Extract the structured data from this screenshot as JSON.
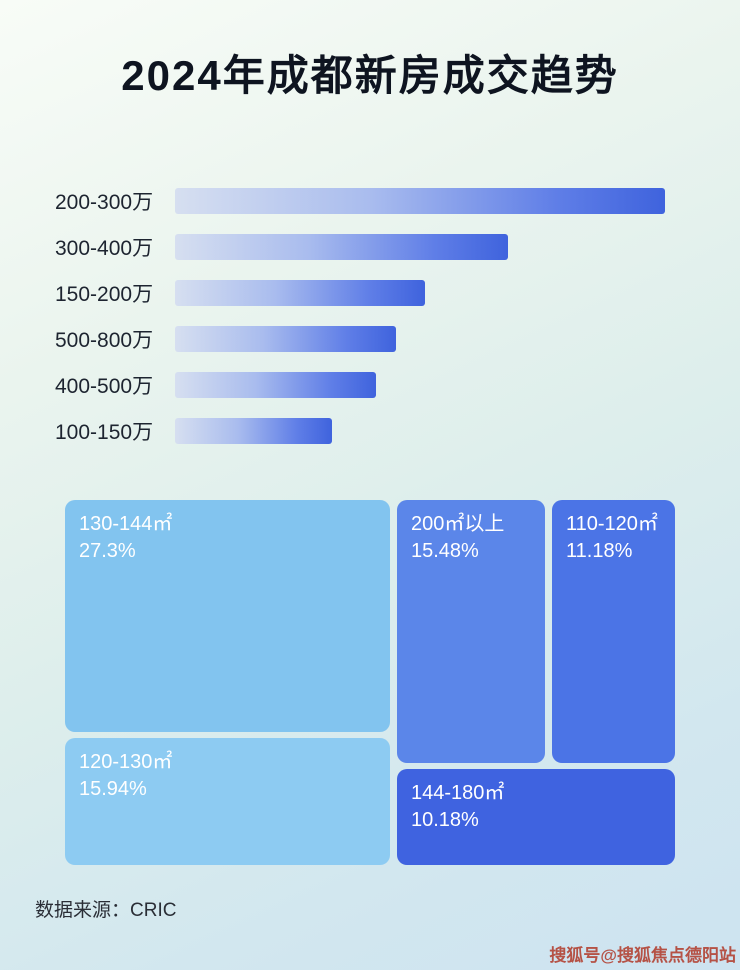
{
  "title": "2024年成都新房成交趋势",
  "chart_data": [
    {
      "type": "bar",
      "orientation": "horizontal",
      "categories": [
        "200-300万",
        "300-400万",
        "150-200万",
        "500-800万",
        "400-500万",
        "100-150万"
      ],
      "values": [
        100,
        68,
        51,
        45,
        41,
        32
      ],
      "value_unit": "relative length, % of longest bar (no axis shown)",
      "xlabel": "",
      "ylabel": "",
      "grid": false,
      "legend": false
    },
    {
      "type": "treemap",
      "items": [
        {
          "label": "130-144㎡",
          "value": "27.3%"
        },
        {
          "label": "120-130㎡",
          "value": "15.94%"
        },
        {
          "label": "200㎡以上",
          "value": "15.48%"
        },
        {
          "label": "110-120㎡",
          "value": "11.18%"
        },
        {
          "label": "144-180㎡",
          "value": "10.18%"
        }
      ]
    }
  ],
  "footer": {
    "source": "数据来源：CRIC"
  },
  "watermark": "搜狐号@搜狐焦点德阳站",
  "colors": {
    "bar_gradient_start": "#d6dff0",
    "bar_gradient_end": "#3f63dd",
    "treemap_130_144": "#82c4ef",
    "treemap_120_130": "#8dcbf2",
    "treemap_200_plus": "#5b86e9",
    "treemap_110_120": "#4b74e6",
    "treemap_144_180": "#3f63e0",
    "watermark": "#b23e2e"
  }
}
